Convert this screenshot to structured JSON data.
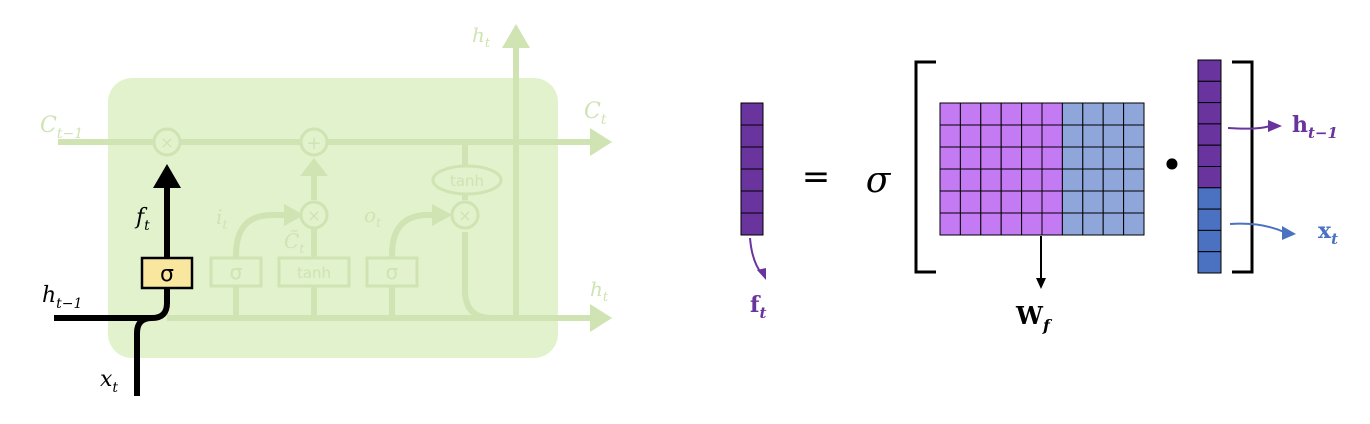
{
  "lstm_cell": {
    "labels": {
      "c_prev": {
        "base": "C",
        "sub": "t−1"
      },
      "c_next": {
        "base": "C",
        "sub": "t"
      },
      "h_top": {
        "base": "h",
        "sub": "t"
      },
      "h_right": {
        "base": "h",
        "sub": "t"
      },
      "h_prev": {
        "base": "h",
        "sub": "t−1"
      },
      "x_in": {
        "base": "x",
        "sub": "t"
      },
      "f_gate": {
        "base": "f",
        "sub": "t"
      },
      "i_gate": {
        "base": "i",
        "sub": "t"
      },
      "o_gate": {
        "base": "o",
        "sub": "t"
      },
      "c_tilde": {
        "base": "C̃",
        "sub": "t"
      }
    },
    "ops": {
      "multiply": "×",
      "add": "+"
    },
    "gates": {
      "forget": "σ",
      "input": "σ",
      "candidate": "tanh",
      "output": "σ"
    },
    "cell_tanh": "tanh"
  },
  "equation": {
    "equals": "=",
    "sigma": "σ",
    "dot": "•",
    "output_label": {
      "base": "f",
      "sub": "t"
    },
    "weight_label": {
      "base": "W",
      "sub": "f"
    },
    "h_label": {
      "base": "h",
      "sub": "t−1"
    },
    "x_label": {
      "base": "x",
      "sub": "t"
    }
  },
  "colors": {
    "cell_fill": "#e2f2cc",
    "faded": "#cfe3b3",
    "active": "#000000",
    "sigma_box": "#f9e79f",
    "purple_dark": "#6a349e",
    "purple_light": "#c47af2",
    "blue": "#4a72c0",
    "blue_light": "#8fa6da",
    "h_label_color": "#6a349e",
    "x_label_color": "#4a72c0"
  }
}
